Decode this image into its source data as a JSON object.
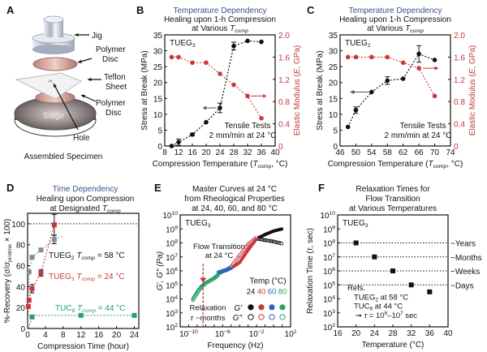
{
  "panelA": {
    "letter": "A",
    "labels": {
      "jig": "Jig",
      "disc_top": [
        "Polymer",
        "Disc"
      ],
      "teflon": [
        "Teflon",
        "Sheet"
      ],
      "disc_bottom": [
        "Polymer",
        "Disc"
      ],
      "stage": "Stage",
      "hole": "Hole"
    },
    "caption": "Assembled Specimen"
  },
  "colors": {
    "black": "#111111",
    "red": "#c8373a",
    "gray": "#8a8a8a",
    "green": "#27a06a",
    "blue": "#2f67b7",
    "title_blue": "#3b4f8f",
    "axis_red": "#c0393b"
  },
  "chart_data": [
    {
      "id": "B",
      "type": "scatter",
      "letter": "B",
      "title_top": "Temperature Dependency",
      "title_lines": [
        "Healing upon 1-h Compression",
        "at Various T"
      ],
      "title_sub": "comp",
      "xlabel": "Compression Temperature (T",
      "xlabel_sub": "comp",
      "xlabel_end": ", °C)",
      "ylabel": "Stress at Break (MPa)",
      "y2label": "Elastic Modulus (E, GPa)",
      "xlim": [
        8,
        40
      ],
      "xticks": [
        8,
        12,
        16,
        20,
        24,
        28,
        32,
        36,
        40
      ],
      "ylim": [
        0,
        35
      ],
      "yticks": [
        0,
        5,
        10,
        15,
        20,
        25,
        30,
        35
      ],
      "y2lim": [
        0,
        2.0
      ],
      "y2ticks": [
        "0",
        "0.4",
        "0.8",
        "1.2",
        "1.6",
        "2.0"
      ],
      "sample": "TUEG",
      "sample_sub": "3",
      "annotation": [
        "Tensile Tests",
        "2 mm/min at 24 °C"
      ],
      "series": [
        {
          "name": "Stress at Break",
          "axis": "left",
          "color": "#111111",
          "x": [
            10,
            12,
            16,
            20,
            24,
            28,
            32,
            36
          ],
          "y": [
            0,
            1.2,
            3.6,
            7.5,
            12,
            31.5,
            33.1,
            32.8
          ],
          "err": [
            0,
            1,
            0.4,
            0,
            1.5,
            1.2,
            0,
            0
          ]
        },
        {
          "name": "Elastic Modulus",
          "axis": "right",
          "color": "#c8373a",
          "x": [
            10,
            12,
            16,
            20,
            24,
            28,
            32,
            36
          ],
          "y": [
            1.6,
            1.6,
            1.5,
            1.5,
            1.3,
            1.1,
            0.9,
            0.5
          ]
        }
      ]
    },
    {
      "id": "C",
      "type": "scatter",
      "letter": "C",
      "title_top": "Temperature Dependency",
      "title_lines": [
        "Healing upon 1-h Compression",
        "at Various T"
      ],
      "title_sub": "comp",
      "xlabel": "Compression Temperature (T",
      "xlabel_sub": "comp",
      "xlabel_end": ", °C)",
      "ylabel": "Stress at Break (MPa)",
      "y2label": "Elastic Modulus (E, GPa)",
      "xlim": [
        46,
        74
      ],
      "xticks": [
        46,
        50,
        54,
        58,
        62,
        66,
        70,
        74
      ],
      "ylim": [
        0,
        35
      ],
      "yticks": [
        0,
        5,
        10,
        15,
        20,
        25,
        30,
        35
      ],
      "y2lim": [
        0,
        2.0
      ],
      "y2ticks": [
        "0",
        "0.4",
        "0.8",
        "1.2",
        "1.6",
        "2.0"
      ],
      "sample": "TUEG",
      "sample_sub": "2",
      "annotation": [
        "Tensile Tests",
        "2 mm/min at 24 °C"
      ],
      "series": [
        {
          "name": "Stress at Break",
          "axis": "left",
          "color": "#111111",
          "x": [
            48,
            50,
            54,
            58,
            62,
            66,
            70
          ],
          "y": [
            6,
            11.3,
            17,
            20.6,
            21.2,
            29,
            27.1
          ],
          "err": [
            0,
            1,
            0,
            1.2,
            0,
            2.6,
            0
          ]
        },
        {
          "name": "Elastic Modulus",
          "axis": "right",
          "color": "#c8373a",
          "x": [
            48,
            50,
            54,
            58,
            62,
            66,
            70
          ],
          "y": [
            1.6,
            1.6,
            1.6,
            1.6,
            1.5,
            1.4,
            0.9
          ]
        }
      ]
    },
    {
      "id": "D",
      "type": "scatter",
      "letter": "D",
      "title_top": "Time Dependency",
      "title_lines": [
        "Healing upon Compression",
        "at Designated T"
      ],
      "title_sub": "comp",
      "xlabel": "Compression Time (hour)",
      "ylabel": "%-Recovery (σ/σpristine × 100)",
      "xlim": [
        0,
        25
      ],
      "xticks": [
        0,
        4,
        8,
        12,
        16,
        20,
        24
      ],
      "ylim": [
        0,
        110
      ],
      "yticks": [
        0,
        20,
        40,
        60,
        80,
        100
      ],
      "series": [
        {
          "name": "TUEG2 Tcomp = 58 °C",
          "label": "TUEG",
          "sub": "2",
          "tlabel": " = 58 °C",
          "color": "#8a8a8a",
          "x": [
            0.33,
            1,
            3,
            6
          ],
          "y": [
            54,
            68,
            75,
            85
          ],
          "err": [
            0,
            0,
            0,
            4
          ]
        },
        {
          "name": "TUEG3 Tcomp = 24 °C",
          "label": "TUEG",
          "sub": "3",
          "tlabel": " = 24 °C",
          "color": "#c8373a",
          "x": [
            0.17,
            0.33,
            1,
            3,
            6
          ],
          "y": [
            21,
            27,
            38,
            53,
            99
          ],
          "err": [
            0,
            0,
            4,
            3,
            10
          ]
        },
        {
          "name": "TUC8 Tcomp = 44 °C",
          "label": "TUC",
          "sub": "8",
          "tlabel": " = 44 °C",
          "color": "#27a06a",
          "x": [
            1,
            12,
            24
          ],
          "y": [
            11,
            12.5,
            12.5
          ],
          "err": [
            0,
            0,
            0
          ]
        }
      ],
      "reference_line": 100
    },
    {
      "id": "E",
      "type": "scatter",
      "letter": "E",
      "title_lines": [
        "Master Curves at 24 °C",
        "from Rheological Properties",
        "at 24, 40, 60, and 80 °C"
      ],
      "xlabel": "Frequency (Hz)",
      "ylabel": "G′, G″ (Pa)",
      "xscale": "log",
      "yscale": "log",
      "xlim_exp": [
        -11,
        2
      ],
      "xtick_exps": [
        -10,
        -6,
        -2,
        2
      ],
      "ylim_exp": [
        2,
        10
      ],
      "ytick_exps": [
        2,
        3,
        4,
        5,
        6,
        7,
        8,
        9,
        10
      ],
      "sample": "TUEG",
      "sample_sub": "3",
      "annotations": {
        "flow": [
          "Flow Transition",
          "at 24 °C"
        ],
        "relax": [
          "Relaxation",
          "τ ~months"
        ],
        "flow_x_exp": -8.3
      },
      "legend": {
        "title": "Temp (°C)",
        "temps": [
          "24",
          "40",
          "60",
          "80"
        ],
        "gp": "G′",
        "gpp": "G″"
      },
      "series": [
        {
          "name": "24 °C",
          "color": "#111111",
          "log_x": [
            -2,
            -1,
            0,
            1
          ],
          "log_gp": [
            8.3,
            8.6,
            8.85,
            9.0
          ],
          "log_gpp": [
            8.3,
            8.2,
            8.1,
            7.95
          ]
        },
        {
          "name": "40 °C",
          "color": "#c8373a",
          "log_x": [
            -5,
            -4,
            -3,
            -2
          ],
          "log_gp": [
            6.2,
            6.6,
            7.5,
            8.3
          ],
          "log_gpp": [
            6.3,
            7.1,
            7.9,
            8.4
          ]
        },
        {
          "name": "60 °C",
          "color": "#2f67b7",
          "log_x": [
            -6.5,
            -6,
            -5.5,
            -5
          ],
          "log_gp": [
            5.8,
            5.95,
            6.05,
            6.2
          ],
          "log_gpp": [
            5.9,
            6.0,
            6.1,
            6.3
          ]
        },
        {
          "name": "80 °C",
          "color": "#27a06a",
          "log_x": [
            -9.5,
            -9,
            -8.5,
            -8,
            -7,
            -6.5
          ],
          "log_gp": [
            4.0,
            4.5,
            4.9,
            5.15,
            5.5,
            5.75
          ],
          "log_gpp": [
            3.9,
            4.4,
            4.85,
            5.1,
            5.45,
            5.7
          ]
        }
      ]
    },
    {
      "id": "F",
      "type": "scatter",
      "letter": "F",
      "title_lines": [
        "Relaxation Times for",
        "Flow Transition",
        "at Various Temperatures"
      ],
      "xlabel": "Temperature (°C)",
      "ylabel": "Relaxation Time (τ, sec)",
      "yscale": "log",
      "xlim": [
        16,
        40
      ],
      "xticks": [
        16,
        20,
        24,
        28,
        32,
        36,
        40
      ],
      "ylim_exp": [
        2,
        10
      ],
      "ytick_exps": [
        2,
        3,
        4,
        5,
        6,
        7,
        8,
        9,
        10
      ],
      "sample": "TUEG",
      "sample_sub": "3",
      "series": [
        {
          "name": "TUEG3",
          "color": "#111111",
          "x": [
            20,
            24,
            28,
            32,
            36
          ],
          "log_y": [
            8,
            7,
            6,
            5,
            4.5
          ]
        }
      ],
      "ref_lines": [
        {
          "log_y": 8,
          "label": "~Years"
        },
        {
          "log_y": 7,
          "label": "~Months"
        },
        {
          "log_y": 6,
          "label": "~Weeks"
        },
        {
          "log_y": 5,
          "label": "~Days"
        }
      ],
      "refs_note": [
        "Refs.",
        "TUEG2 at 58 °C",
        "TUC8 at 44 °C",
        "→ τ = 10⁶–10⁷ sec"
      ]
    }
  ]
}
